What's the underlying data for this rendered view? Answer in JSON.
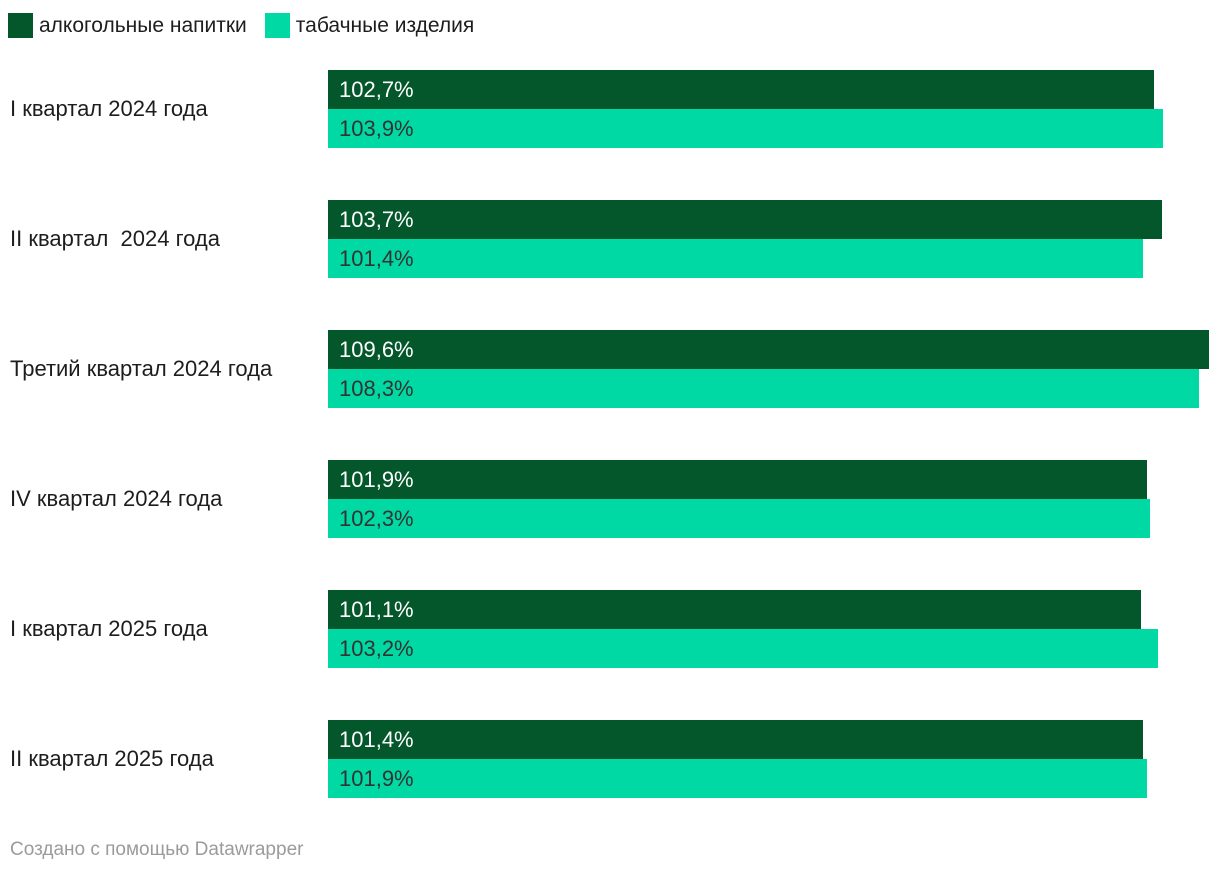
{
  "colors": {
    "series_alcohol": "#04572b",
    "series_tobacco": "#00d9a3",
    "label_on_dark": "#ffffff",
    "label_on_light": "#333333",
    "category_text": "#1d1d1d",
    "footer_text": "#9b9b9b",
    "background": "#ffffff"
  },
  "legend": {
    "items": [
      {
        "key": "alcohol",
        "label": "алкогольные напитки",
        "color": "#04572b"
      },
      {
        "key": "tobacco",
        "label": "табачные изделия",
        "color": "#00d9a3"
      }
    ]
  },
  "footer": {
    "attribution": "Создано с помощью Datawrapper"
  },
  "chart_data": {
    "type": "bar",
    "orientation": "horizontal",
    "grid": false,
    "legend_position": "top",
    "bar_labels_inside": true,
    "value_format": "one_decimal_comma_percent",
    "xlim": [
      0,
      109.6
    ],
    "categories": [
      "I квартал 2024 года",
      "II квартал  2024 года",
      "Третий квартал 2024 года",
      "IV квартал 2024 года",
      "I квартал 2025 года",
      "II квартал 2025 года"
    ],
    "series": [
      {
        "key": "alcohol",
        "name": "алкогольные напитки",
        "color": "#04572b",
        "label_color": "#ffffff",
        "values": [
          102.7,
          103.7,
          109.6,
          101.9,
          101.1,
          101.4
        ],
        "labels": [
          "102,7%",
          "103,7%",
          "109,6%",
          "101,9%",
          "101,1%",
          "101,4%"
        ]
      },
      {
        "key": "tobacco",
        "name": "табачные изделия",
        "color": "#00d9a3",
        "label_color": "#333333",
        "values": [
          103.9,
          101.4,
          108.3,
          102.3,
          103.2,
          101.9
        ],
        "labels": [
          "103,9%",
          "101,4%",
          "108,3%",
          "102,3%",
          "103,2%",
          "101,9%"
        ]
      }
    ]
  }
}
